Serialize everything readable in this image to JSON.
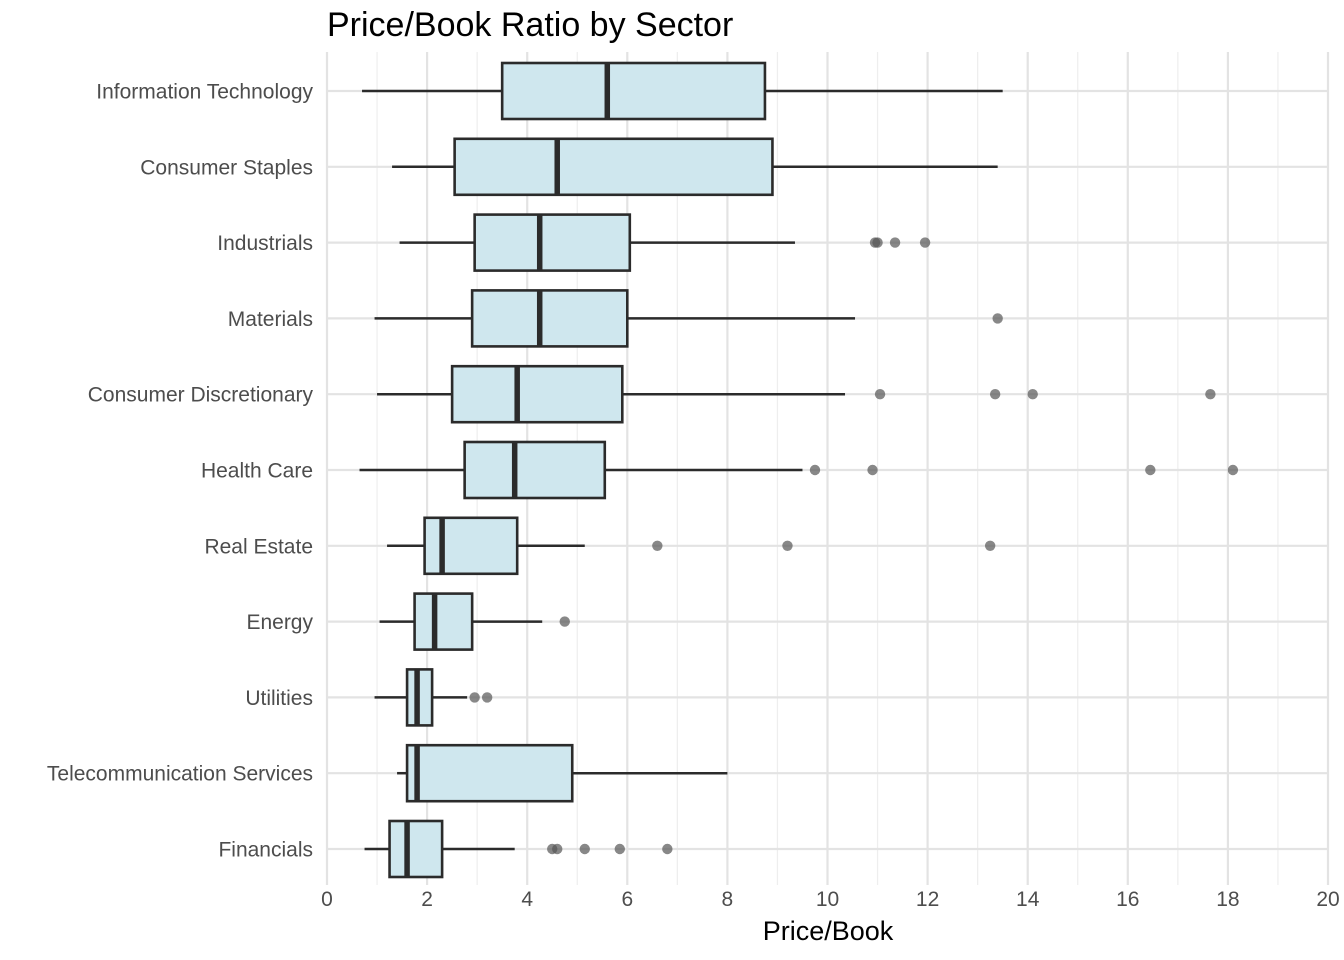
{
  "chart_data": {
    "type": "boxplot",
    "title": "Price/Book Ratio by Sector",
    "xlabel": "Price/Book",
    "ylabel": "",
    "xlim": [
      0,
      20
    ],
    "xticks": [
      "0",
      "2",
      "4",
      "6",
      "8",
      "10",
      "12",
      "14",
      "16",
      "18",
      "20"
    ],
    "grid": true,
    "orientation": "horizontal",
    "colors": {
      "box_fill": "#cfe7ee",
      "box_stroke": "#2b2b2b",
      "outlier": "#555555",
      "grid": "#e5e5e5"
    },
    "categories": [
      "Information Technology",
      "Consumer Staples",
      "Industrials",
      "Materials",
      "Consumer Discretionary",
      "Health Care",
      "Real Estate",
      "Energy",
      "Utilities",
      "Telecommunication Services",
      "Financials"
    ],
    "boxes": [
      {
        "category": "Information Technology",
        "whisker_low": 0.7,
        "q1": 3.5,
        "median": 5.6,
        "q3": 8.75,
        "whisker_high": 13.5,
        "outliers": []
      },
      {
        "category": "Consumer Staples",
        "whisker_low": 1.3,
        "q1": 2.55,
        "median": 4.6,
        "q3": 8.9,
        "whisker_high": 13.4,
        "outliers": []
      },
      {
        "category": "Industrials",
        "whisker_low": 1.45,
        "q1": 2.95,
        "median": 4.25,
        "q3": 6.05,
        "whisker_high": 9.35,
        "outliers": [
          10.95,
          11.0,
          11.35,
          11.95
        ]
      },
      {
        "category": "Materials",
        "whisker_low": 0.95,
        "q1": 2.9,
        "median": 4.25,
        "q3": 6.0,
        "whisker_high": 10.55,
        "outliers": [
          13.4
        ]
      },
      {
        "category": "Consumer Discretionary",
        "whisker_low": 1.0,
        "q1": 2.5,
        "median": 3.8,
        "q3": 5.9,
        "whisker_high": 10.35,
        "outliers": [
          11.05,
          13.35,
          14.1,
          17.65
        ]
      },
      {
        "category": "Health Care",
        "whisker_low": 0.65,
        "q1": 2.75,
        "median": 3.75,
        "q3": 5.55,
        "whisker_high": 9.5,
        "outliers": [
          9.75,
          10.9,
          16.45,
          18.1
        ]
      },
      {
        "category": "Real Estate",
        "whisker_low": 1.2,
        "q1": 1.95,
        "median": 2.3,
        "q3": 3.8,
        "whisker_high": 5.15,
        "outliers": [
          6.6,
          9.2,
          13.25
        ]
      },
      {
        "category": "Energy",
        "whisker_low": 1.05,
        "q1": 1.75,
        "median": 2.15,
        "q3": 2.9,
        "whisker_high": 4.3,
        "outliers": [
          4.75
        ]
      },
      {
        "category": "Utilities",
        "whisker_low": 0.95,
        "q1": 1.6,
        "median": 1.8,
        "q3": 2.1,
        "whisker_high": 2.8,
        "outliers": [
          2.95,
          3.2
        ]
      },
      {
        "category": "Telecommunication Services",
        "whisker_low": 1.4,
        "q1": 1.6,
        "median": 1.8,
        "q3": 4.9,
        "whisker_high": 8.0,
        "outliers": []
      },
      {
        "category": "Financials",
        "whisker_low": 0.75,
        "q1": 1.25,
        "median": 1.6,
        "q3": 2.3,
        "whisker_high": 3.75,
        "outliers": [
          4.5,
          4.6,
          5.15,
          5.85,
          6.8
        ]
      }
    ]
  }
}
